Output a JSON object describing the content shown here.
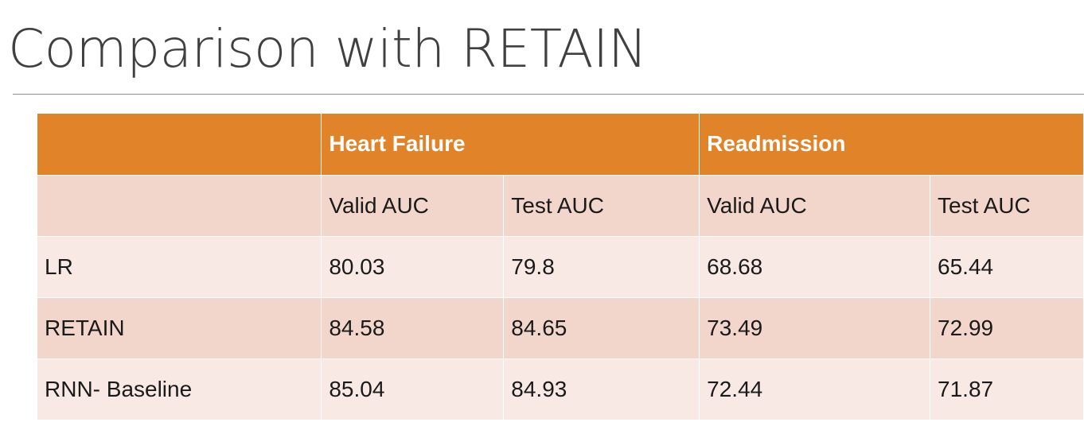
{
  "title": "Comparison with RETAIN",
  "table": {
    "group_headers": [
      "",
      "Heart Failure",
      "Readmission"
    ],
    "sub_headers": [
      "",
      "Valid AUC",
      "Test AUC",
      "Valid AUC",
      "Test AUC"
    ],
    "rows": [
      {
        "model": "LR",
        "values": [
          "80.03",
          "79.8",
          "68.68",
          "65.44"
        ]
      },
      {
        "model": "RETAIN",
        "values": [
          "84.58",
          "84.65",
          "73.49",
          "72.99"
        ]
      },
      {
        "model": "RNN- Baseline",
        "values": [
          "85.04",
          "84.93",
          "72.44",
          "71.87"
        ]
      }
    ]
  },
  "colors": {
    "header_orange": "#e08329",
    "band_dark": "#f3d6cb",
    "band_light": "#f9e9e5",
    "title_gray": "#404040"
  }
}
